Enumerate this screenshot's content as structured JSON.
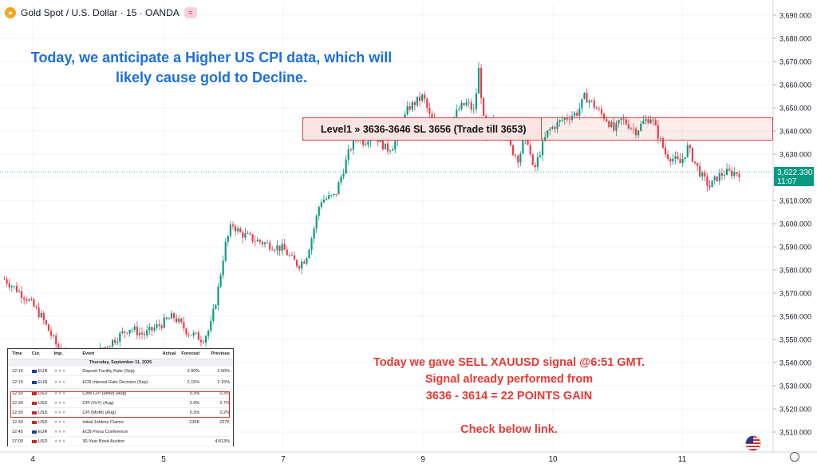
{
  "header": {
    "symbol_text": "Gold Spot / U.S. Dollar · 15 · OANDA",
    "logo_icon": "gold-coin-icon",
    "badge_icon": "approx-equal-icon",
    "badge_glyph": "≈"
  },
  "annotations": {
    "headline_line1": "Today, we anticipate a Higher US CPI data, which will",
    "headline_line2": "likely cause gold to Decline.",
    "signal_line1": "Today we gave SELL XAUUSD signal @6:51 GMT.",
    "signal_line2": "Signal already performed from",
    "signal_line3": "3636 - 3614 = 22 POINTS GAIN",
    "signal_line4": "Check below link.",
    "level_label": "Level1 » 3636-3646 SL 3656 (Trade till 3653)"
  },
  "price_tag": {
    "price": "3,622.330",
    "countdown": "11:07",
    "color": "#089981"
  },
  "colors": {
    "up": "#089981",
    "down": "#f23645",
    "headline": "#1e6fd9",
    "signal": "#e53935"
  },
  "chart_data": {
    "type": "candlestick",
    "ylim": [
      3500,
      3695
    ],
    "yticks": [
      3510,
      3520,
      3530,
      3540,
      3550,
      3560,
      3570,
      3580,
      3590,
      3600,
      3610,
      3620,
      3630,
      3640,
      3650,
      3660,
      3670,
      3680,
      3690
    ],
    "xtick_labels": [
      "4",
      "5",
      "7",
      "9",
      "10",
      "11"
    ],
    "zone": {
      "low": 3636,
      "high": 3646,
      "stop_loss": 3656,
      "trade_till": 3653
    },
    "current_price": 3622.33,
    "close_path": [
      [
        0,
        3576
      ],
      [
        0.03,
        3568
      ],
      [
        0.05,
        3560
      ],
      [
        0.07,
        3548
      ],
      [
        0.09,
        3540
      ],
      [
        0.11,
        3538
      ],
      [
        0.13,
        3545
      ],
      [
        0.15,
        3550
      ],
      [
        0.17,
        3555
      ],
      [
        0.19,
        3552
      ],
      [
        0.21,
        3556
      ],
      [
        0.23,
        3560
      ],
      [
        0.25,
        3553
      ],
      [
        0.27,
        3550
      ],
      [
        0.28,
        3555
      ],
      [
        0.29,
        3570
      ],
      [
        0.3,
        3590
      ],
      [
        0.31,
        3600
      ],
      [
        0.32,
        3596
      ],
      [
        0.34,
        3593
      ],
      [
        0.36,
        3591
      ],
      [
        0.38,
        3589
      ],
      [
        0.39,
        3585
      ],
      [
        0.4,
        3582
      ],
      [
        0.41,
        3585
      ],
      [
        0.42,
        3596
      ],
      [
        0.43,
        3610
      ],
      [
        0.45,
        3612
      ],
      [
        0.46,
        3622
      ],
      [
        0.47,
        3632
      ],
      [
        0.48,
        3638
      ],
      [
        0.49,
        3635
      ],
      [
        0.5,
        3640
      ],
      [
        0.52,
        3632
      ],
      [
        0.53,
        3634
      ],
      [
        0.54,
        3642
      ],
      [
        0.55,
        3650
      ],
      [
        0.57,
        3655
      ],
      [
        0.58,
        3645
      ],
      [
        0.6,
        3640
      ],
      [
        0.62,
        3650
      ],
      [
        0.63,
        3652
      ],
      [
        0.64,
        3648
      ],
      [
        0.645,
        3668
      ],
      [
        0.65,
        3652
      ],
      [
        0.655,
        3635
      ],
      [
        0.66,
        3644
      ],
      [
        0.68,
        3640
      ],
      [
        0.69,
        3632
      ],
      [
        0.7,
        3628
      ],
      [
        0.71,
        3640
      ],
      [
        0.72,
        3622
      ],
      [
        0.73,
        3632
      ],
      [
        0.74,
        3640
      ],
      [
        0.76,
        3645
      ],
      [
        0.78,
        3648
      ],
      [
        0.79,
        3655
      ],
      [
        0.8,
        3652
      ],
      [
        0.81,
        3648
      ],
      [
        0.82,
        3645
      ],
      [
        0.83,
        3640
      ],
      [
        0.84,
        3645
      ],
      [
        0.86,
        3640
      ],
      [
        0.87,
        3644
      ],
      [
        0.88,
        3646
      ],
      [
        0.89,
        3638
      ],
      [
        0.9,
        3630
      ],
      [
        0.91,
        3628
      ],
      [
        0.92,
        3626
      ],
      [
        0.93,
        3633
      ],
      [
        0.94,
        3626
      ],
      [
        0.95,
        3620
      ],
      [
        0.96,
        3616
      ],
      [
        0.97,
        3620
      ],
      [
        0.98,
        3622
      ]
    ]
  },
  "calendar": {
    "headers": [
      "Time",
      "Cur.",
      "Imp.",
      "Event",
      "Actual",
      "Forecast",
      "Previous"
    ],
    "date": "Thursday, September 11, 2025",
    "rows": [
      {
        "time": "12:15",
        "cur": "EUR",
        "event": "Deposit Facility Rate (Sep)",
        "actual": "",
        "forecast": "2.00%",
        "previous": "2.00%"
      },
      {
        "time": "12:15",
        "cur": "EUR",
        "event": "ECB Interest Rate Decision (Sep)",
        "actual": "",
        "forecast": "2.15%",
        "previous": "2.15%"
      },
      {
        "time": "12:30",
        "cur": "USD",
        "event": "Core CPI (MoM) (Aug)",
        "actual": "",
        "forecast": "0.3%",
        "previous": "0.3%"
      },
      {
        "time": "12:30",
        "cur": "USD",
        "event": "CPI (YoY) (Aug)",
        "actual": "",
        "forecast": "2.9%",
        "previous": "2.7%"
      },
      {
        "time": "12:30",
        "cur": "USD",
        "event": "CPI (MoM) (Aug)",
        "actual": "",
        "forecast": "0.3%",
        "previous": "0.2%"
      },
      {
        "time": "12:30",
        "cur": "USD",
        "event": "Initial Jobless Claims",
        "actual": "",
        "forecast": "235K",
        "previous": "237K"
      },
      {
        "time": "12:45",
        "cur": "EUR",
        "event": "ECB Press Conference",
        "actual": "",
        "forecast": "",
        "previous": ""
      },
      {
        "time": "17:00",
        "cur": "USD",
        "event": "30-Year Bond Auction",
        "actual": "",
        "forecast": "",
        "previous": "4.813%"
      }
    ],
    "importance_glyph": "★★★"
  }
}
